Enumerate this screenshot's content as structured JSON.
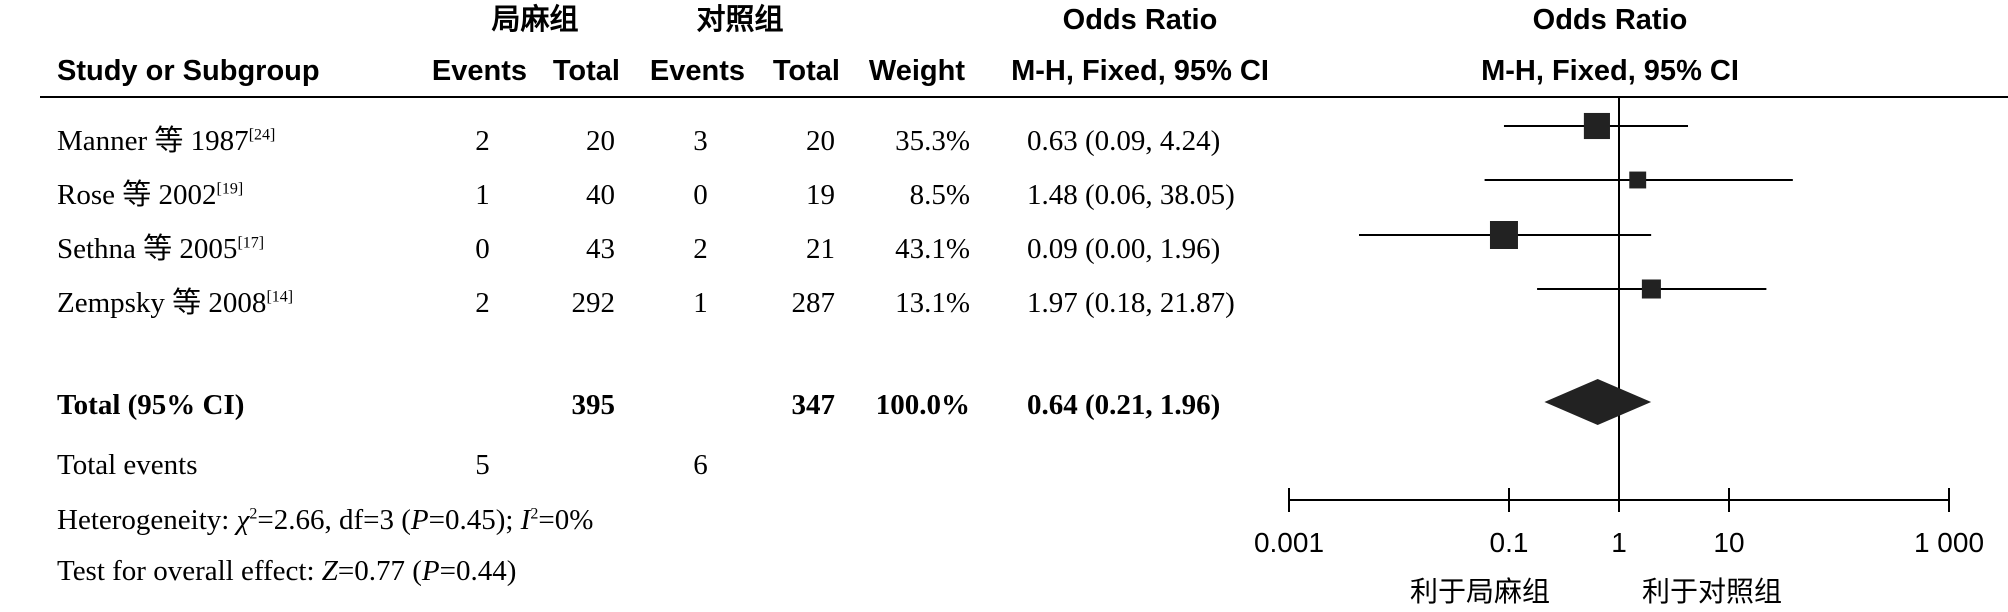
{
  "header": {
    "group_exp": "局麻组",
    "group_ctrl": "对照组",
    "odds_ratio": "Odds Ratio",
    "odds_ratio_plot": "Odds Ratio",
    "study": "Study or Subgroup",
    "events_exp": "Events",
    "total_exp": "Total",
    "events_ctrl": "Events",
    "total_ctrl": "Total",
    "weight": "Weight",
    "method": "M-H, Fixed, 95% CI",
    "method_plot": "M-H, Fixed, 95% CI"
  },
  "studies": [
    {
      "name": "Manner 等 1987",
      "ref": "[24]",
      "events_exp": "2",
      "total_exp": "20",
      "events_ctrl": "3",
      "total_ctrl": "20",
      "weight": "35.3%",
      "ci": "0.63 (0.09, 4.24)"
    },
    {
      "name": "Rose 等 2002",
      "ref": "[19]",
      "events_exp": "1",
      "total_exp": "40",
      "events_ctrl": "0",
      "total_ctrl": "19",
      "weight": "8.5%",
      "ci": "1.48 (0.06, 38.05)"
    },
    {
      "name": "Sethna 等 2005",
      "ref": "[17]",
      "events_exp": "0",
      "total_exp": "43",
      "events_ctrl": "2",
      "total_ctrl": "21",
      "weight": "43.1%",
      "ci": "0.09 (0.00, 1.96)"
    },
    {
      "name": "Zempsky 等 2008",
      "ref": "[14]",
      "events_exp": "2",
      "total_exp": "292",
      "events_ctrl": "1",
      "total_ctrl": "287",
      "weight": "13.1%",
      "ci": "1.97 (0.18, 21.87)"
    }
  ],
  "total": {
    "label": "Total (95% CI)",
    "total_exp": "395",
    "total_ctrl": "347",
    "weight": "100.0%",
    "ci": "0.64 (0.21, 1.96)"
  },
  "events": {
    "label": "Total events",
    "exp": "5",
    "ctrl": "6"
  },
  "stats": {
    "het_prefix": "Heterogeneity: ",
    "het_chi": "χ",
    "het_chi_val": "=2.66, df=3 (",
    "het_p": "P",
    "het_p_val": "=0.45); ",
    "het_i": "I",
    "het_i_val": "=0%",
    "overall_prefix": "Test for overall effect: ",
    "overall_z": "Z",
    "overall_z_val": "=0.77 (",
    "overall_p": "P",
    "overall_p_val": "=0.44)"
  },
  "axis": {
    "favours_left": "利于局麻组",
    "favours_right": "利于对照组"
  },
  "chart_data": {
    "type": "forest",
    "scale": "log",
    "xlim": [
      0.001,
      1000
    ],
    "null_line": 1,
    "tick_labels": [
      "0.001",
      "0.1",
      "1",
      "10",
      "1 000"
    ],
    "tick_values": [
      0.001,
      0.1,
      1,
      10,
      1000
    ],
    "studies": [
      {
        "name": "Manner 等 1987",
        "or": 0.63,
        "lo": 0.09,
        "hi": 4.24,
        "weight": 35.3
      },
      {
        "name": "Rose 等 2002",
        "or": 1.48,
        "lo": 0.06,
        "hi": 38.05,
        "weight": 8.5
      },
      {
        "name": "Sethna 等 2005",
        "or": 0.09,
        "lo": 0.0,
        "hi": 1.96,
        "weight": 43.1
      },
      {
        "name": "Zempsky 等 2008",
        "or": 1.97,
        "lo": 0.18,
        "hi": 21.87,
        "weight": 13.1
      }
    ],
    "pooled": {
      "or": 0.64,
      "lo": 0.21,
      "hi": 1.96
    }
  }
}
